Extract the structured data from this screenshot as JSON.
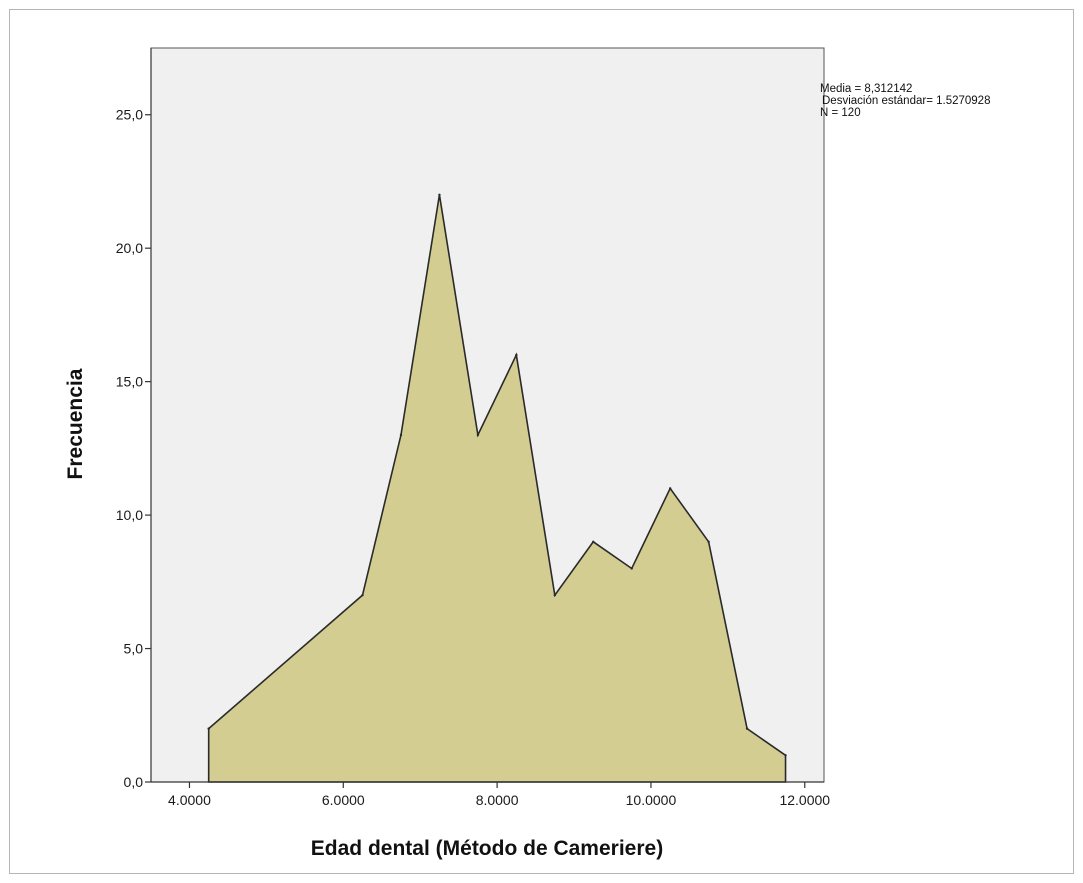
{
  "chart_data": {
    "type": "area",
    "title": "",
    "xlabel": "Edad dental (Método de Cameriere)",
    "ylabel": "Frecuencia",
    "xlim": [
      3.5,
      12.25
    ],
    "ylim": [
      0,
      27.5
    ],
    "x_ticks": [
      4.0,
      6.0,
      8.0,
      10.0,
      12.0
    ],
    "x_tick_labels": [
      "4.0000",
      "6.0000",
      "8.0000",
      "10.0000",
      "12.0000"
    ],
    "y_ticks": [
      0,
      5,
      10,
      15,
      20,
      25
    ],
    "y_tick_labels": [
      "0,0",
      "5,0",
      "10,0",
      "15,0",
      "20,0",
      "25,0"
    ],
    "series": [
      {
        "x": [
          4.25,
          6.25,
          6.75,
          7.25,
          7.75,
          8.25,
          8.75,
          9.25,
          9.75,
          10.25,
          10.75,
          11.25,
          11.75
        ],
        "values": [
          2,
          7,
          13,
          22,
          13,
          16,
          7,
          9,
          8,
          11,
          9,
          2,
          1
        ]
      }
    ],
    "fill_color": "#d3cd92",
    "plot_background": "#f0f0f0",
    "line_color": "#2a2a2a",
    "grid": false,
    "stats": {
      "mean": "Media = 8,312142",
      "std": "Desviación estándar= 1.5270928",
      "n": "N = 120"
    }
  }
}
